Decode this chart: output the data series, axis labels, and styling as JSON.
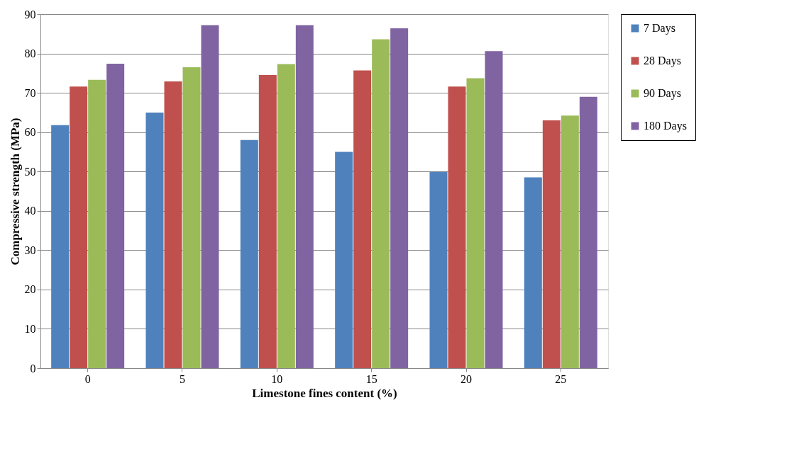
{
  "chart_data": {
    "type": "bar",
    "xlabel": "Limestone  fines content (%)",
    "ylabel": "Compressive  strength (MPa)",
    "categories": [
      "0",
      "5",
      "10",
      "15",
      "20",
      "25"
    ],
    "series": [
      {
        "name": "7 Days",
        "color": "#4f81bd",
        "values": [
          61.8,
          65.0,
          58.0,
          55.0,
          49.9,
          48.5
        ]
      },
      {
        "name": "28 Days",
        "color": "#c0504d",
        "values": [
          71.6,
          72.9,
          74.5,
          75.7,
          71.6,
          63.0
        ]
      },
      {
        "name": "90 Days",
        "color": "#9bbb59",
        "values": [
          73.3,
          76.5,
          77.3,
          83.6,
          73.7,
          64.2
        ]
      },
      {
        "name": "180 Days",
        "color": "#8064a2",
        "values": [
          77.4,
          87.2,
          87.2,
          86.4,
          80.6,
          69.0
        ]
      }
    ],
    "ylim": [
      0,
      90
    ],
    "yticks": [
      0,
      10,
      20,
      30,
      40,
      50,
      60,
      70,
      80,
      90
    ],
    "grid": "y",
    "legend": "right"
  }
}
